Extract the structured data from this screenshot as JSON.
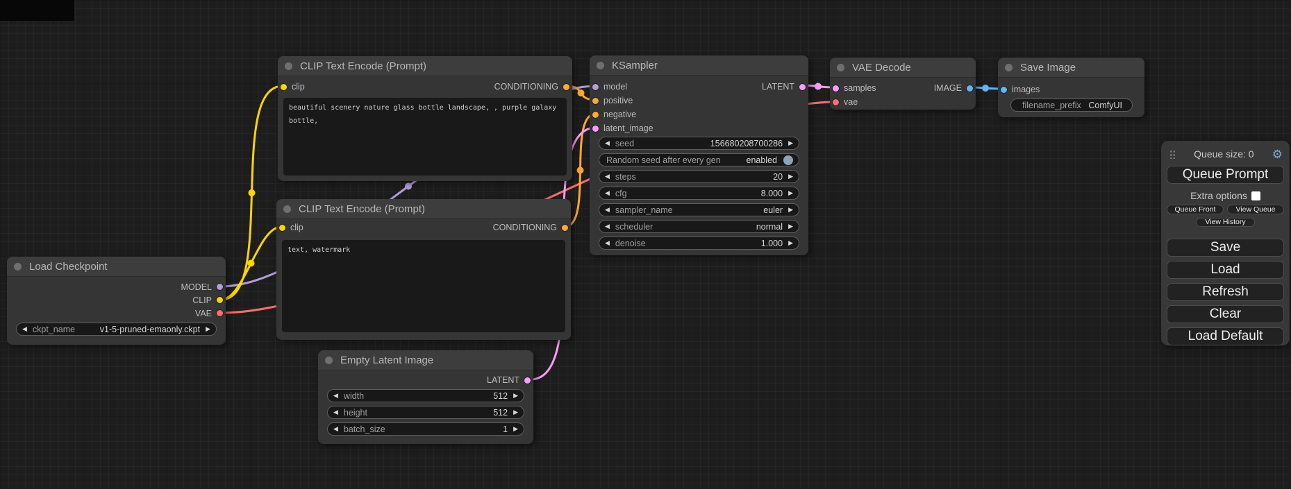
{
  "icons": {
    "left_arrow": "◀",
    "right_arrow": "▶",
    "gear": "⚙"
  },
  "port_colors": {
    "MODEL": "#B39DDB",
    "CLIP": "#FFD500",
    "VAE": "#FF6E6E",
    "CONDITIONING": "#FFA931",
    "LATENT": "#FF9CF9",
    "IMAGE": "#64B5F6"
  },
  "toggle_color": "#8ea2b8",
  "nodes": {
    "load_checkpoint": {
      "title": "Load Checkpoint",
      "outputs": [
        "MODEL",
        "CLIP",
        "VAE"
      ],
      "widget": {
        "label": "ckpt_name",
        "value": "v1-5-pruned-emaonly.ckpt"
      }
    },
    "clip_positive": {
      "title": "CLIP Text Encode (Prompt)",
      "input": "clip",
      "output": "CONDITIONING",
      "text": "beautiful scenery nature glass bottle landscape, , purple galaxy bottle,"
    },
    "clip_negative": {
      "title": "CLIP Text Encode (Prompt)",
      "input": "clip",
      "output": "CONDITIONING",
      "text": "text, watermark"
    },
    "empty_latent": {
      "title": "Empty Latent Image",
      "output": "LATENT",
      "widgets": [
        {
          "label": "width",
          "value": "512"
        },
        {
          "label": "height",
          "value": "512"
        },
        {
          "label": "batch_size",
          "value": "1"
        }
      ]
    },
    "ksampler": {
      "title": "KSampler",
      "inputs": [
        "model",
        "positive",
        "negative",
        "latent_image"
      ],
      "output": "LATENT",
      "widgets": [
        {
          "label": "seed",
          "value": "156680208700286"
        },
        {
          "label": "Random seed after every gen",
          "value": "enabled"
        },
        {
          "label": "steps",
          "value": "20"
        },
        {
          "label": "cfg",
          "value": "8.000"
        },
        {
          "label": "sampler_name",
          "value": "euler"
        },
        {
          "label": "scheduler",
          "value": "normal"
        },
        {
          "label": "denoise",
          "value": "1.000"
        }
      ]
    },
    "vae_decode": {
      "title": "VAE Decode",
      "inputs": [
        "samples",
        "vae"
      ],
      "output": "IMAGE"
    },
    "save_image": {
      "title": "Save Image",
      "input": "images",
      "widget": {
        "label": "filename_prefix",
        "value": "ComfyUI"
      }
    }
  },
  "panel": {
    "queue_size": "Queue size: 0",
    "queue_prompt": "Queue Prompt",
    "extra_options": "Extra options",
    "queue_front": "Queue Front",
    "view_queue": "View Queue",
    "view_history": "View History",
    "save": "Save",
    "load": "Load",
    "refresh": "Refresh",
    "clear": "Clear",
    "load_default": "Load Default"
  },
  "links": [
    {
      "type": "MODEL"
    },
    {
      "type": "CLIP"
    },
    {
      "type": "CLIP"
    },
    {
      "type": "VAE"
    },
    {
      "type": "CONDITIONING"
    },
    {
      "type": "CONDITIONING"
    },
    {
      "type": "LATENT"
    },
    {
      "type": "LATENT"
    },
    {
      "type": "IMAGE"
    }
  ]
}
